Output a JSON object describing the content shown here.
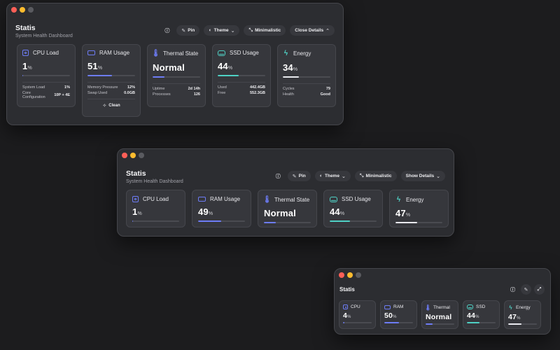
{
  "colors": {
    "accent_blue": "#6d7cf5",
    "accent_teal": "#4fd1c5",
    "accent_white": "#e9e9ef",
    "track": "#4a4b51"
  },
  "windows": [
    {
      "title": "Statis",
      "subtitle": "System Health Dashboard",
      "toolbar": {
        "info_icon": "info-icon",
        "pin_label": "Pin",
        "theme_label": "Theme",
        "minimalistic_label": "Minimalistic",
        "details_label": "Close Details",
        "details_icon": "chevron-up-icon"
      },
      "cards": [
        {
          "label": "CPU Load",
          "icon": "cpu-icon",
          "value": "1",
          "unit": "%",
          "level": 0.01,
          "bar_color": "#6d7cf5",
          "stats": [
            {
              "label": "System Load",
              "value": "1%"
            },
            {
              "label": "Core Configuration",
              "value": "10P + 4E"
            }
          ]
        },
        {
          "label": "RAM Usage",
          "icon": "memory-icon",
          "value": "51",
          "unit": "%",
          "level": 0.51,
          "bar_color": "#6d7cf5",
          "stats": [
            {
              "label": "Memory Pressure",
              "value": "12%"
            },
            {
              "label": "Swap Used",
              "value": "0.0GB"
            }
          ],
          "action": {
            "label": "Clean",
            "icon": "sparkle-icon"
          }
        },
        {
          "label": "Thermal State",
          "icon": "thermometer-icon",
          "value": "Normal",
          "unit": "",
          "level": 0.25,
          "bar_color": "#6d7cf5",
          "stats": [
            {
              "label": "Uptime",
              "value": "2d 14h"
            },
            {
              "label": "Processes",
              "value": "126"
            }
          ]
        },
        {
          "label": "SSD Usage",
          "icon": "drive-icon",
          "value": "44",
          "unit": "%",
          "level": 0.44,
          "bar_color": "#4fd1c5",
          "stats": [
            {
              "label": "Used",
              "value": "442.4GB"
            },
            {
              "label": "Free",
              "value": "552.3GB"
            }
          ]
        },
        {
          "label": "Energy",
          "icon": "bolt-icon",
          "value": "34",
          "unit": "%",
          "level": 0.34,
          "bar_color": "#e9e9ef",
          "stats": [
            {
              "label": "Cycles",
              "value": "79"
            },
            {
              "label": "Health",
              "value": "Good"
            }
          ]
        }
      ]
    },
    {
      "title": "Statis",
      "subtitle": "System Health Dashboard",
      "toolbar": {
        "info_icon": "info-icon",
        "pin_label": "Pin",
        "theme_label": "Theme",
        "minimalistic_label": "Minimalistic",
        "details_label": "Show Details",
        "details_icon": "chevron-down-icon"
      },
      "cards": [
        {
          "label": "CPU Load",
          "icon": "cpu-icon",
          "value": "1",
          "unit": "%",
          "level": 0.01,
          "bar_color": "#6d7cf5"
        },
        {
          "label": "RAM Usage",
          "icon": "memory-icon",
          "value": "49",
          "unit": "%",
          "level": 0.49,
          "bar_color": "#6d7cf5"
        },
        {
          "label": "Thermal State",
          "icon": "thermometer-icon",
          "value": "Normal",
          "unit": "",
          "level": 0.25,
          "bar_color": "#6d7cf5"
        },
        {
          "label": "SSD Usage",
          "icon": "drive-icon",
          "value": "44",
          "unit": "%",
          "level": 0.44,
          "bar_color": "#4fd1c5"
        },
        {
          "label": "Energy",
          "icon": "bolt-icon",
          "value": "47",
          "unit": "%",
          "level": 0.47,
          "bar_color": "#e9e9ef"
        }
      ]
    },
    {
      "title": "Statis",
      "toolbar": {
        "info_icon": "info-icon",
        "pin_icon": "pin-icon",
        "expand_icon": "expand-icon"
      },
      "cards": [
        {
          "label": "CPU",
          "icon": "cpu-icon",
          "value": "4",
          "unit": "%",
          "level": 0.04,
          "bar_color": "#6d7cf5"
        },
        {
          "label": "RAM",
          "icon": "memory-icon",
          "value": "50",
          "unit": "%",
          "level": 0.5,
          "bar_color": "#6d7cf5"
        },
        {
          "label": "Thermal",
          "icon": "thermometer-icon",
          "value": "Normal",
          "unit": "",
          "level": 0.25,
          "bar_color": "#6d7cf5"
        },
        {
          "label": "SSD",
          "icon": "drive-icon",
          "value": "44",
          "unit": "%",
          "level": 0.44,
          "bar_color": "#4fd1c5"
        },
        {
          "label": "Energy",
          "icon": "bolt-icon",
          "value": "47",
          "unit": "%",
          "level": 0.47,
          "bar_color": "#e9e9ef"
        }
      ]
    }
  ]
}
